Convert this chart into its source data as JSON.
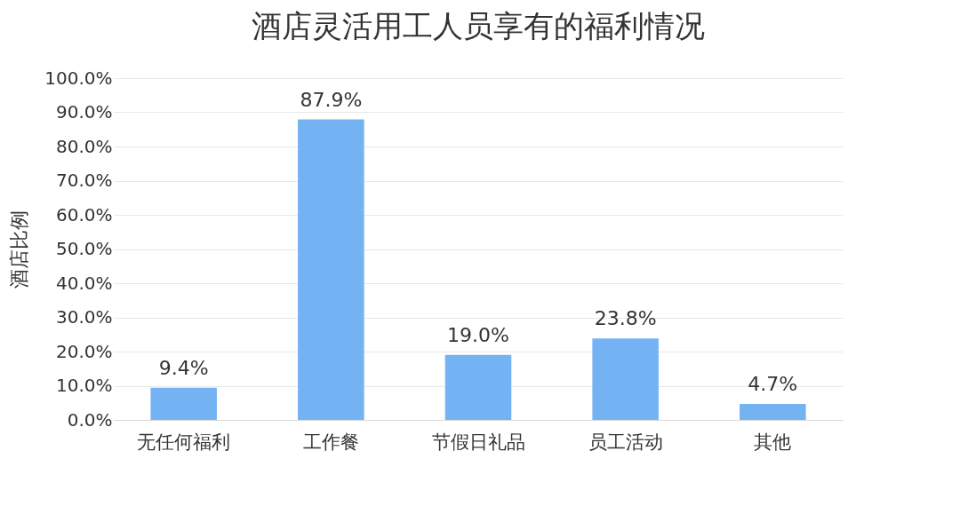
{
  "chart_data": {
    "type": "bar",
    "title": "酒店灵活用工人员享有的福利情况",
    "ylabel": "酒店比例",
    "categories": [
      "无任何福利",
      "工作餐",
      "节假日礼品",
      "员工活动",
      "其他"
    ],
    "values": [
      9.4,
      87.9,
      19.0,
      23.8,
      4.7
    ],
    "value_labels": [
      "9.4%",
      "87.9%",
      "19.0%",
      "23.8%",
      "4.7%"
    ],
    "color": "#74b3f3",
    "ylim": [
      0,
      100
    ],
    "yticks": [
      {
        "value": 0,
        "label": "0.0%"
      },
      {
        "value": 10,
        "label": "10.0%"
      },
      {
        "value": 20,
        "label": "20.0%"
      },
      {
        "value": 30,
        "label": "30.0%"
      },
      {
        "value": 40,
        "label": "40.0%"
      },
      {
        "value": 50,
        "label": "50.0%"
      },
      {
        "value": 60,
        "label": "60.0%"
      },
      {
        "value": 70,
        "label": "70.0%"
      },
      {
        "value": 80,
        "label": "80.0%"
      },
      {
        "value": 90,
        "label": "90.0%"
      },
      {
        "value": 100,
        "label": "100.0%"
      }
    ],
    "grid": "y"
  }
}
